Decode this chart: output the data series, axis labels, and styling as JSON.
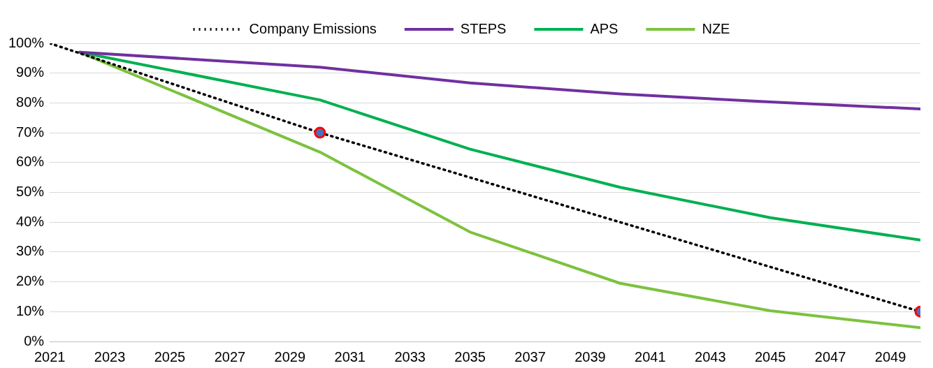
{
  "chart_data": {
    "type": "line",
    "legend": "top",
    "grid": "y",
    "xlim": [
      2021,
      2050
    ],
    "xticks": [
      2021,
      2023,
      2025,
      2027,
      2029,
      2031,
      2033,
      2035,
      2037,
      2039,
      2041,
      2043,
      2045,
      2047,
      2049
    ],
    "ylim": [
      0,
      100
    ],
    "yticks": [
      {
        "value": 0,
        "label": "0%"
      },
      {
        "value": 10,
        "label": "10%"
      },
      {
        "value": 20,
        "label": "20%"
      },
      {
        "value": 30,
        "label": "30%"
      },
      {
        "value": 40,
        "label": "40%"
      },
      {
        "value": 50,
        "label": "50%"
      },
      {
        "value": 60,
        "label": "60%"
      },
      {
        "value": 70,
        "label": "70%"
      },
      {
        "value": 80,
        "label": "80%"
      },
      {
        "value": 90,
        "label": "90%"
      },
      {
        "value": 100,
        "label": "100%"
      }
    ],
    "marker": "none",
    "series": [
      {
        "name": "Company Emissions",
        "color": "#000000",
        "line_style": "dotted",
        "x": [
          2021,
          2030,
          2050
        ],
        "values": [
          100,
          70,
          10
        ]
      },
      {
        "name": "STEPS",
        "color": "#7030a0",
        "line_style": "solid",
        "x": [
          2022,
          2030,
          2035,
          2040,
          2045,
          2050
        ],
        "values": [
          97,
          92,
          86.7,
          83,
          80.3,
          78
        ]
      },
      {
        "name": "APS",
        "color": "#00b050",
        "line_style": "solid",
        "x": [
          2022,
          2030,
          2035,
          2040,
          2045,
          2050
        ],
        "values": [
          97,
          81,
          64.5,
          51.7,
          41.5,
          34
        ]
      },
      {
        "name": "NZE",
        "color": "#7cc23e",
        "line_style": "solid",
        "x": [
          2022,
          2030,
          2035,
          2040,
          2045,
          2050
        ],
        "values": [
          97,
          63.5,
          36.7,
          19.5,
          10.3,
          4.6
        ]
      },
      {
        "type": "scatter",
        "marker": "circle",
        "color": "#ff0000",
        "x": [
          2030,
          2050
        ],
        "values": [
          70,
          10
        ]
      }
    ]
  }
}
